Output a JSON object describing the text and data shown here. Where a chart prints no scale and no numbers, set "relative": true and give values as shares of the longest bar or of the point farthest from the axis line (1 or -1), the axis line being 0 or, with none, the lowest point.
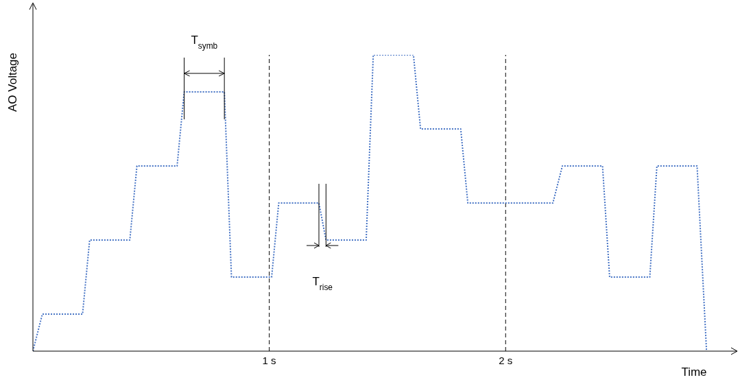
{
  "chart_data": {
    "type": "line",
    "xlabel": "Time",
    "ylabel": "AO Voltage",
    "relative": true,
    "x": [
      0,
      0.04,
      0.21,
      0.24,
      0.41,
      0.44,
      0.61,
      0.64,
      0.81,
      0.84,
      1.01,
      1.04,
      1.21,
      1.24,
      1.41,
      1.44,
      1.61,
      1.64,
      1.81,
      1.84,
      2.2,
      2.24,
      2.41,
      2.44,
      2.61,
      2.64,
      2.81,
      2.85
    ],
    "series": [
      {
        "color": "#4472c4",
        "values": [
          0,
          0.125,
          0.125,
          0.375,
          0.375,
          0.625,
          0.625,
          0.875,
          0.875,
          0.25,
          0.25,
          0.5,
          0.5,
          0.375,
          0.375,
          1,
          1,
          0.75,
          0.75,
          0.5,
          0.5,
          0.625,
          0.625,
          0.25,
          0.25,
          0.625,
          0.625,
          0
        ]
      }
    ],
    "xlim": [
      0,
      2.98
    ],
    "xticks": [
      {
        "value": 1,
        "label": "1 s"
      },
      {
        "value": 2,
        "label": "2 s"
      }
    ],
    "ref_lines": [
      {
        "axis": "x",
        "value": 1,
        "color": "#000000",
        "line_style": "dashed"
      },
      {
        "axis": "x",
        "value": 2,
        "color": "#000000",
        "line_style": "dashed"
      }
    ],
    "annotations": [
      "T$_{symb}$",
      "T$_{rise}$"
    ],
    "line_style": "dotted",
    "marker": "none",
    "grid": false,
    "legend": false
  }
}
